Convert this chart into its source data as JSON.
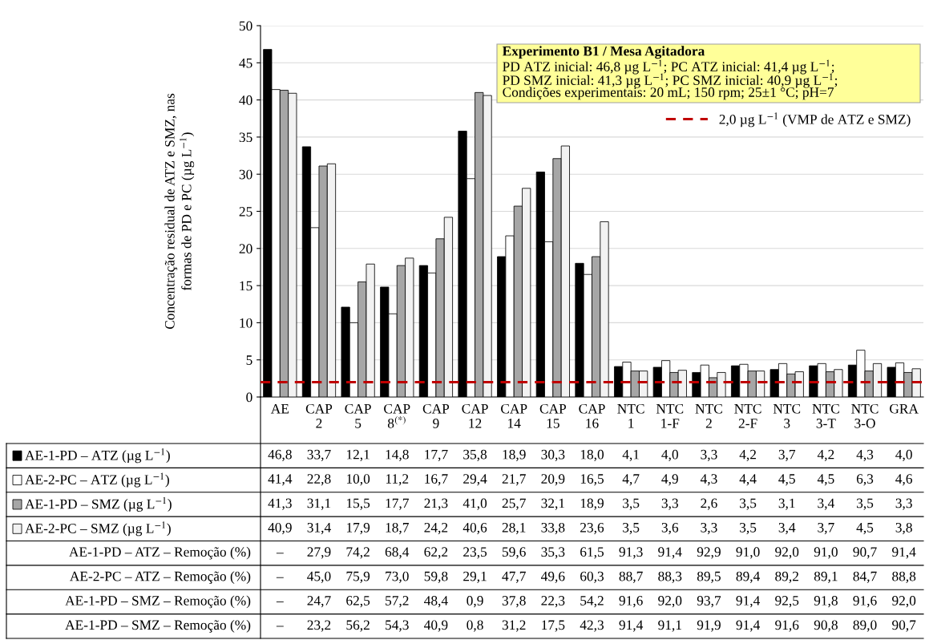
{
  "chart_data": {
    "type": "bar",
    "ylabel": "Concentração residual de ATZ e SMZ, nas\nformas de PD e PC (µg L$^{−1}$)",
    "categories": [
      "AE",
      "CAP\n2",
      "CAP\n5",
      "CAP\n8$^{(*)}$",
      "CAP\n9",
      "CAP\n12",
      "CAP\n14",
      "CAP\n15",
      "CAP\n16",
      "NTC\n1",
      "NTC\n1-F",
      "NTC\n2",
      "NTC\n2-F",
      "NTC\n3",
      "NTC\n3-T",
      "NTC\n3-O",
      "GRA"
    ],
    "series": [
      {
        "name": "AE-1-PD – ATZ (µg L$^{−1}$)",
        "color": "#000000",
        "values": [
          46.8,
          33.7,
          12.1,
          14.8,
          17.7,
          35.8,
          18.9,
          30.3,
          18.0,
          4.1,
          4.0,
          3.3,
          4.2,
          3.7,
          4.2,
          4.3,
          4.0
        ],
        "value_labels": [
          "46,8",
          "33,7",
          "12,1",
          "14,8",
          "17,7",
          "35,8",
          "18,9",
          "30,3",
          "18,0",
          "4,1",
          "4,0",
          "3,3",
          "4,2",
          "3,7",
          "4,2",
          "4,3",
          "4,0"
        ]
      },
      {
        "name": "AE-2-PC – ATZ (µg L$^{−1}$)",
        "color": "#ffffff",
        "values": [
          41.4,
          22.8,
          10.0,
          11.2,
          16.7,
          29.4,
          21.7,
          20.9,
          16.5,
          4.7,
          4.9,
          4.3,
          4.4,
          4.5,
          4.5,
          6.3,
          4.6
        ],
        "value_labels": [
          "41,4",
          "22,8",
          "10,0",
          "11,2",
          "16,7",
          "29,4",
          "21,7",
          "20,9",
          "16,5",
          "4,7",
          "4,9",
          "4,3",
          "4,4",
          "4,5",
          "4,5",
          "6,3",
          "4,6"
        ]
      },
      {
        "name": "AE-1-PD – SMZ (µg L$^{−1}$)",
        "color": "#a6a6a6",
        "values": [
          41.3,
          31.1,
          15.5,
          17.7,
          21.3,
          41.0,
          25.7,
          32.1,
          18.9,
          3.5,
          3.3,
          2.6,
          3.5,
          3.1,
          3.4,
          3.5,
          3.3
        ],
        "value_labels": [
          "41,3",
          "31,1",
          "15,5",
          "17,7",
          "21,3",
          "41,0",
          "25,7",
          "32,1",
          "18,9",
          "3,5",
          "3,3",
          "2,6",
          "3,5",
          "3,1",
          "3,4",
          "3,5",
          "3,3"
        ]
      },
      {
        "name": "AE-2-PC – SMZ (µg L$^{−1}$)",
        "color": "#f2f2f2",
        "values": [
          40.9,
          31.4,
          17.9,
          18.7,
          24.2,
          40.6,
          28.1,
          33.8,
          23.6,
          3.5,
          3.6,
          3.3,
          3.5,
          3.4,
          3.7,
          4.5,
          3.8
        ],
        "value_labels": [
          "40,9",
          "31,4",
          "17,9",
          "18,7",
          "24,2",
          "40,6",
          "28,1",
          "33,8",
          "23,6",
          "3,5",
          "3,6",
          "3,3",
          "3,5",
          "3,4",
          "3,7",
          "4,5",
          "3,8"
        ]
      }
    ],
    "ylim": [
      0,
      50
    ],
    "yticks": [
      0,
      5,
      10,
      15,
      20,
      25,
      30,
      35,
      40,
      45,
      50
    ],
    "grid": "y",
    "legend": "bottom left",
    "ref_lines": [
      {
        "axis": "y",
        "value": 2.0,
        "label": "2,0 µg L$^{−1}$ (VMP de ATZ e SMZ)",
        "color": "#c00000",
        "line_style": "dashed"
      }
    ],
    "annotations": [
      "Experimento B1 / Mesa Agitadora",
      "PD ATZ inicial: 46,8 µg L$^{−1}$; PC ATZ inicial: 41,4 µg L$^{−1}$;",
      "PD SMZ inicial: 41,3 µg L$^{−1}$; PC SMZ inicial: 40,9 µg L$^{−1}$;",
      "Condições experimentais: 20 mL; 150 rpm; 25±1 °C; pH=7",
      "AE-1-PD – ATZ – Remoção (%)",
      "–",
      "27,9",
      "74,2",
      "68,4",
      "62,2",
      "23,5",
      "59,6",
      "35,3",
      "61,5",
      "91,3",
      "91,4",
      "92,9",
      "91,0",
      "92,0",
      "91,0",
      "90,7",
      "91,4",
      "AE-2-PC – ATZ – Remoção (%)",
      "–",
      "45,0",
      "75,9",
      "73,0",
      "59,8",
      "29,1",
      "47,7",
      "49,6",
      "60,3",
      "88,7",
      "88,3",
      "89,5",
      "89,4",
      "89,2",
      "89,1",
      "84,7",
      "88,8",
      "AE-1-PD – SMZ – Remoção (%)",
      "–",
      "24,7",
      "62,5",
      "57,2",
      "48,4",
      "0,9",
      "37,8",
      "22,3",
      "54,2",
      "91,6",
      "92,0",
      "93,7",
      "91,4",
      "92,5",
      "91,8",
      "91,6",
      "92,0",
      "AE-1-PD – SMZ – Remoção (%)",
      "–",
      "23,2",
      "56,2",
      "54,3",
      "40,9",
      "0,8",
      "31,2",
      "17,5",
      "42,3",
      "91,4",
      "91,1",
      "91,9",
      "91,4",
      "91,6",
      "90,8",
      "89,0",
      "90,7"
    ]
  }
}
